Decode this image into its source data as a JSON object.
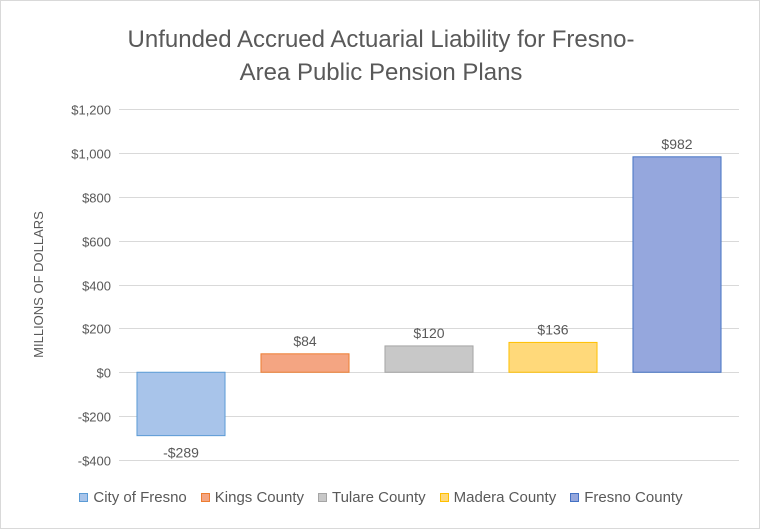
{
  "chart_data": {
    "type": "bar",
    "title_lines": [
      "Unfunded Accrued Actuarial Liability  for Fresno-",
      "Area Public Pension Plans"
    ],
    "ylabel": "MILLIONS OF DOLLARS",
    "ylim": [
      -400,
      1200
    ],
    "ytick_values": [
      -400,
      -200,
      0,
      200,
      400,
      600,
      800,
      1000,
      1200
    ],
    "ytick_labels": [
      "-$400",
      "-$200",
      "$0",
      "$200",
      "$400",
      "$600",
      "$800",
      "$1,000",
      "$1,200"
    ],
    "grid": true,
    "legend_position": "bottom",
    "categories": [
      "City of Fresno",
      "Kings County",
      "Tulare County",
      "Madera County",
      "Fresno County"
    ],
    "values": [
      -289,
      84,
      120,
      136,
      982
    ],
    "data_labels": [
      "-$289",
      "$84",
      "$120",
      "$136",
      "$982"
    ],
    "colors": [
      {
        "fill": "#a8c4ea",
        "stroke": "#5b9bd5"
      },
      {
        "fill": "#f4a582",
        "stroke": "#ed7d31"
      },
      {
        "fill": "#c8c8c8",
        "stroke": "#a5a5a5"
      },
      {
        "fill": "#ffd97a",
        "stroke": "#ffc000"
      },
      {
        "fill": "#95a7dd",
        "stroke": "#4472c4"
      }
    ]
  }
}
